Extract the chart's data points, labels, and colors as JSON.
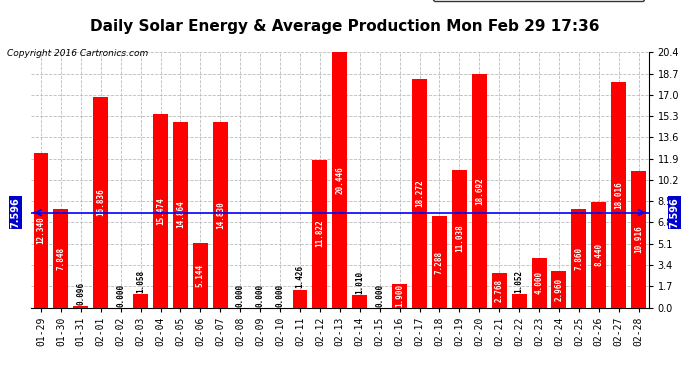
{
  "title": "Daily Solar Energy & Average Production Mon Feb 29 17:36",
  "copyright": "Copyright 2016 Cartronics.com",
  "categories": [
    "01-29",
    "01-30",
    "01-31",
    "02-01",
    "02-02",
    "02-03",
    "02-04",
    "02-05",
    "02-06",
    "02-07",
    "02-08",
    "02-09",
    "02-10",
    "02-11",
    "02-12",
    "02-13",
    "02-14",
    "02-15",
    "02-16",
    "02-17",
    "02-18",
    "02-19",
    "02-20",
    "02-21",
    "02-22",
    "02-23",
    "02-24",
    "02-25",
    "02-26",
    "02-27",
    "02-28"
  ],
  "values": [
    12.34,
    7.848,
    0.096,
    16.836,
    0.0,
    1.058,
    15.474,
    14.864,
    5.144,
    14.83,
    0.0,
    0.0,
    0.0,
    1.426,
    11.822,
    20.446,
    1.01,
    0.0,
    1.9,
    18.272,
    7.288,
    11.038,
    18.692,
    2.768,
    1.052,
    4.0,
    2.96,
    7.86,
    8.44,
    18.016,
    10.916
  ],
  "average_value": 7.596,
  "ylim": [
    0,
    20.4
  ],
  "yticks": [
    0.0,
    1.7,
    3.4,
    5.1,
    6.8,
    8.5,
    10.2,
    11.9,
    13.6,
    15.3,
    17.0,
    18.7,
    20.4
  ],
  "bar_color": "#ff0000",
  "avg_line_color": "#0000ff",
  "avg_label_color": "#ffffff",
  "avg_bg_color": "#0000cc",
  "bar_label_color": "#ffffff",
  "title_fontsize": 11,
  "tick_fontsize": 7,
  "value_fontsize": 5.5,
  "avg_fontsize": 7,
  "background_color": "#ffffff",
  "grid_color": "#bbbbbb",
  "legend_avg_bg": "#0000cc",
  "legend_daily_bg": "#cc0000"
}
